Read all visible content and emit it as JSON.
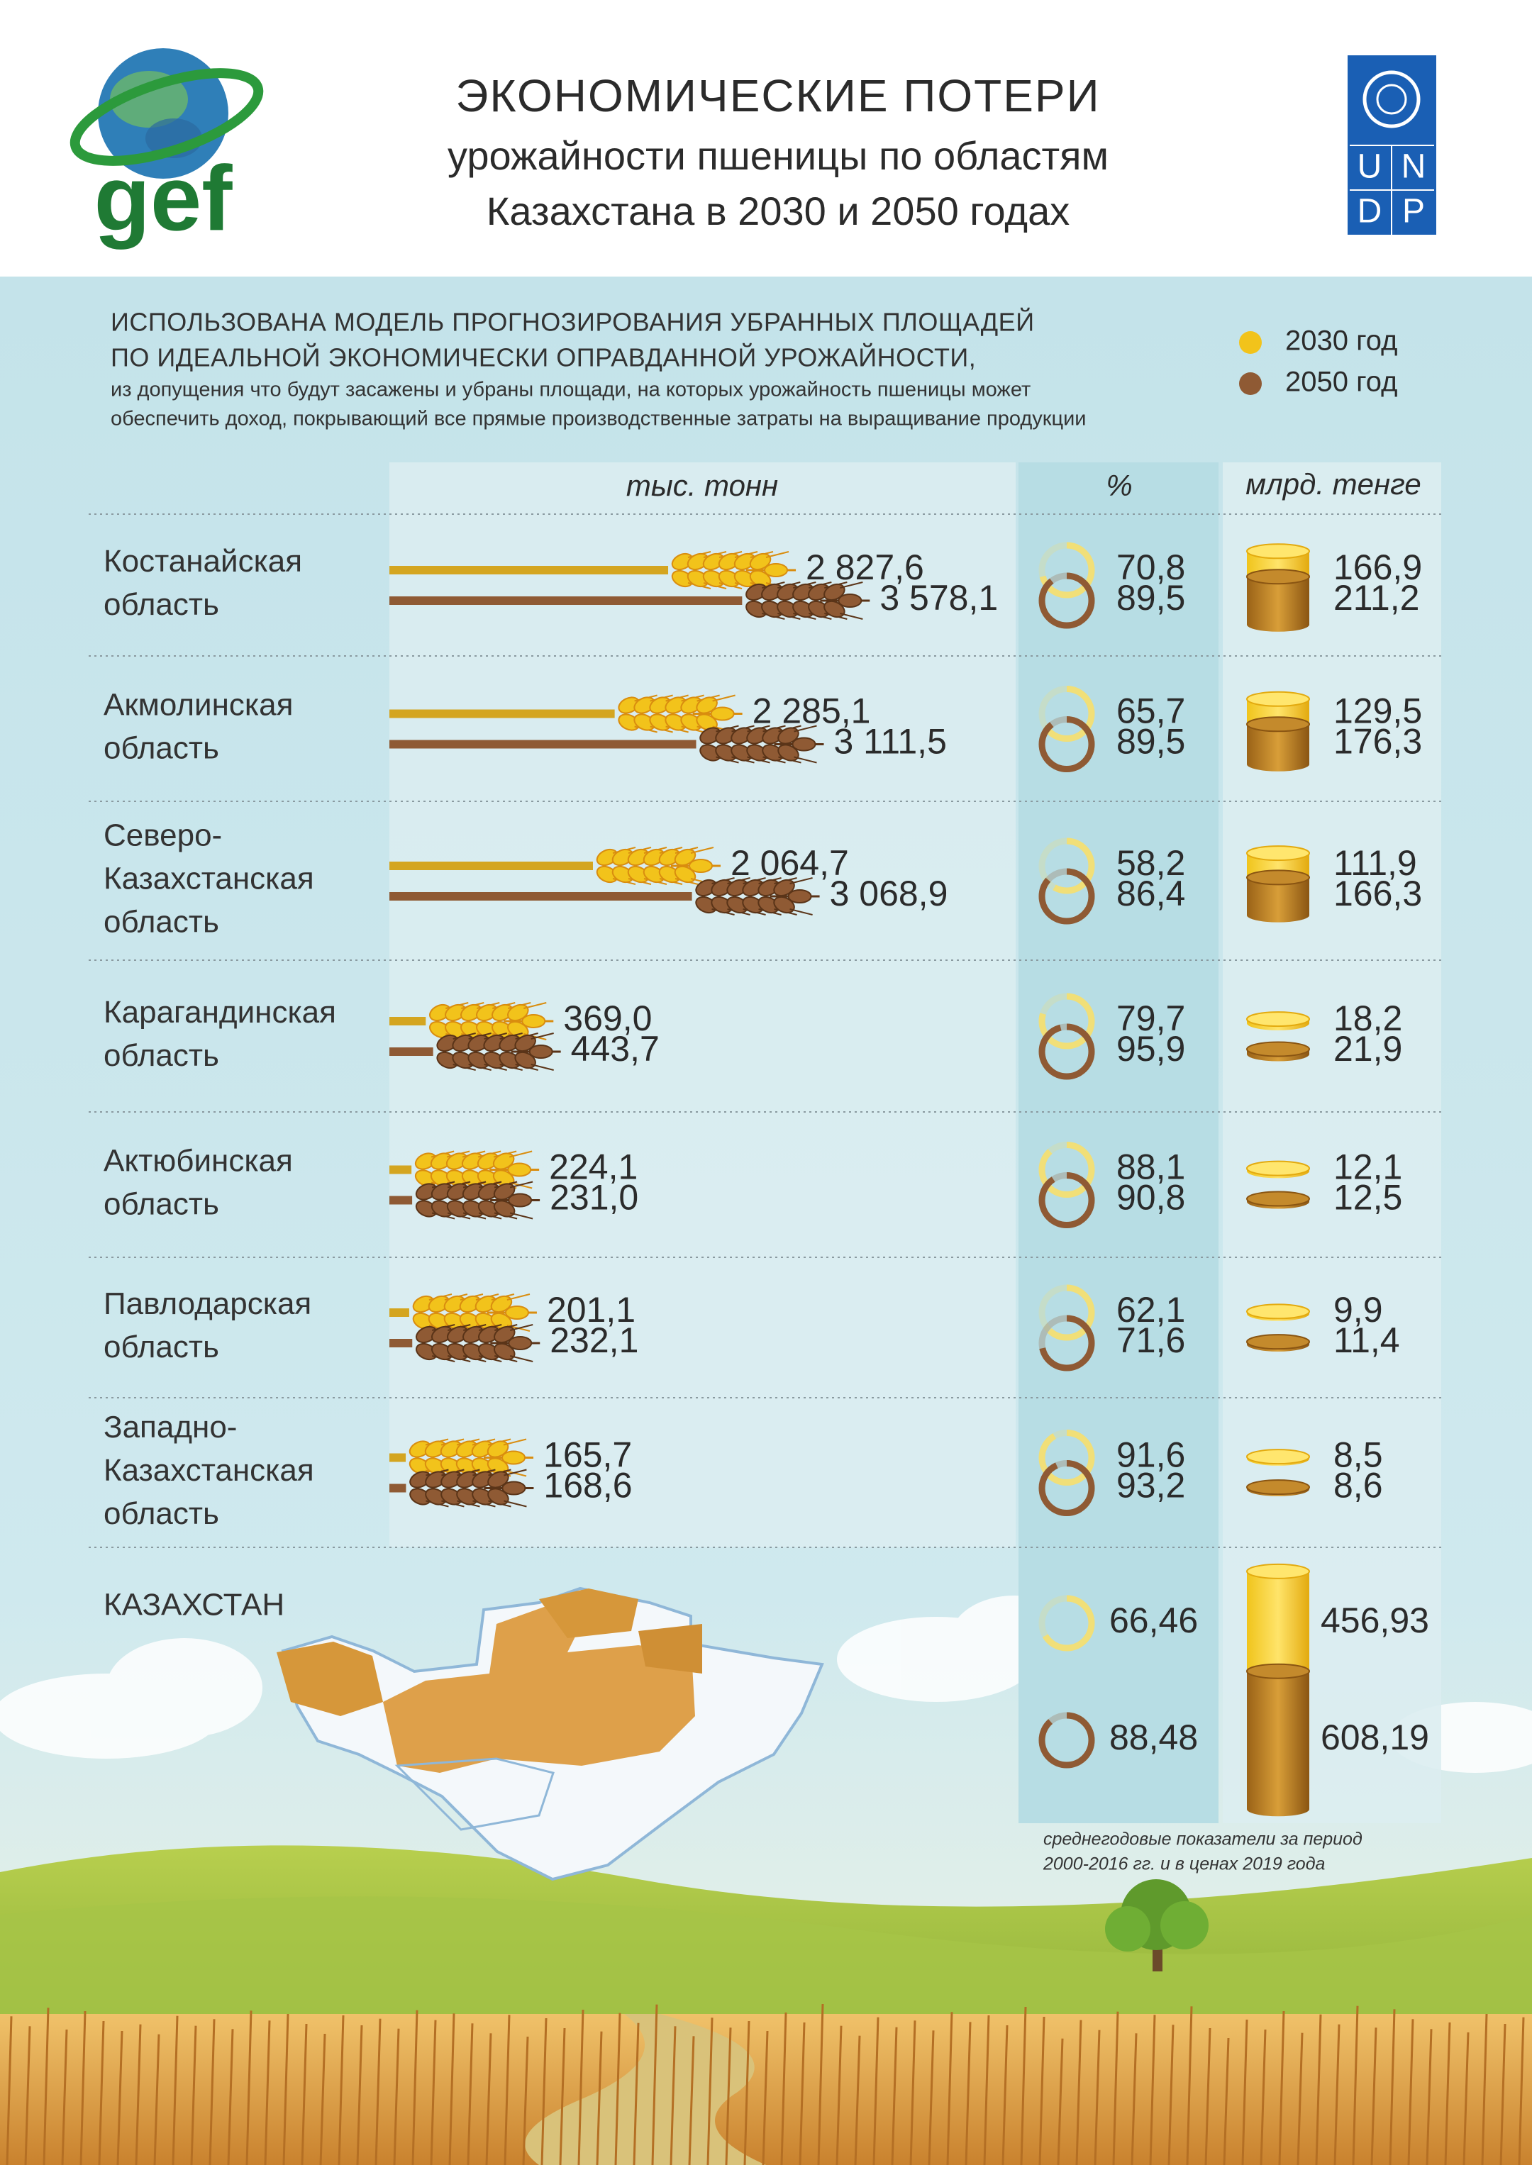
{
  "header": {
    "title": "ЭКОНОМИЧЕСКИЕ ПОТЕРИ",
    "subtitle": [
      "урожайности пшеницы по областям",
      "Казахстана в 2030 и 2050 годах"
    ]
  },
  "logos": {
    "left": "gef",
    "right": [
      "U",
      "N",
      "D",
      "P"
    ]
  },
  "intro": [
    "ИСПОЛЬЗОВАНА МОДЕЛЬ ПРОГНОЗИРОВАНИЯ УБРАННЫХ ПЛОЩАДЕЙ",
    "ПО ИДЕАЛЬНОЙ ЭКОНОМИЧЕСКИ ОПРАВДАННОЙ УРОЖАЙНОСТИ,",
    "из допущения что будут засажены и убраны площади, на которых урожайность пшеницы может",
    "обеспечить доход, покрывающий все прямые производственные затраты на выращивание продукции"
  ],
  "legend": [
    {
      "label": "2030 год",
      "color": "#f2c31b"
    },
    {
      "label": "2050 год",
      "color": "#8f5a34"
    }
  ],
  "columns": {
    "tonnes": "тыс. тонн",
    "percent": "%",
    "money": "млрд. тенге"
  },
  "regions": [
    {
      "name": [
        "Костанайская",
        "область"
      ],
      "tonnes": [
        2827.6,
        3578.1
      ],
      "tonnes_labels": [
        "2 827,6",
        "3 578,1"
      ],
      "percent": [
        70.8,
        89.5
      ],
      "percent_labels": [
        "70,8",
        "89,5"
      ],
      "money": [
        166.9,
        211.2
      ],
      "money_labels": [
        "166,9",
        "211,2"
      ]
    },
    {
      "name": [
        "Акмолинская",
        "область"
      ],
      "tonnes": [
        2285.1,
        3111.5
      ],
      "tonnes_labels": [
        "2 285,1",
        "3 111,5"
      ],
      "percent": [
        65.7,
        89.5
      ],
      "percent_labels": [
        "65,7",
        "89,5"
      ],
      "money": [
        129.5,
        176.3
      ],
      "money_labels": [
        "129,5",
        "176,3"
      ]
    },
    {
      "name": [
        "Северо-",
        "Казахстанская",
        "область"
      ],
      "tonnes": [
        2064.7,
        3068.9
      ],
      "tonnes_labels": [
        "2 064,7",
        "3 068,9"
      ],
      "percent": [
        58.2,
        86.4
      ],
      "percent_labels": [
        "58,2",
        "86,4"
      ],
      "money": [
        111.9,
        166.3
      ],
      "money_labels": [
        "111,9",
        "166,3"
      ]
    },
    {
      "name": [
        "Карагандинская",
        "область"
      ],
      "tonnes": [
        369.0,
        443.7
      ],
      "tonnes_labels": [
        "369,0",
        "443,7"
      ],
      "percent": [
        79.7,
        95.9
      ],
      "percent_labels": [
        "79,7",
        "95,9"
      ],
      "money": [
        18.2,
        21.9
      ],
      "money_labels": [
        "18,2",
        "21,9"
      ]
    },
    {
      "name": [
        "Актюбинская",
        "область"
      ],
      "tonnes": [
        224.1,
        231.0
      ],
      "tonnes_labels": [
        "224,1",
        "231,0"
      ],
      "percent": [
        88.1,
        90.8
      ],
      "percent_labels": [
        "88,1",
        "90,8"
      ],
      "money": [
        12.1,
        12.5
      ],
      "money_labels": [
        "12,1",
        "12,5"
      ]
    },
    {
      "name": [
        "Павлодарская",
        "область"
      ],
      "tonnes": [
        201.1,
        232.1
      ],
      "tonnes_labels": [
        "201,1",
        "232,1"
      ],
      "percent": [
        62.1,
        71.6
      ],
      "percent_labels": [
        "62,1",
        "71,6"
      ],
      "money": [
        9.9,
        11.4
      ],
      "money_labels": [
        "9,9",
        "11,4"
      ]
    },
    {
      "name": [
        "Западно-",
        "Казахстанская",
        "область"
      ],
      "tonnes": [
        165.7,
        168.6
      ],
      "tonnes_labels": [
        "165,7",
        "168,6"
      ],
      "percent": [
        91.6,
        93.2
      ],
      "percent_labels": [
        "91,6",
        "93,2"
      ],
      "money": [
        8.5,
        8.6
      ],
      "money_labels": [
        "8,5",
        "8,6"
      ]
    }
  ],
  "total": {
    "name": "КАЗАХСТАН",
    "percent": [
      66.46,
      88.48
    ],
    "percent_labels": [
      "66,46",
      "88,48"
    ],
    "money": [
      456.93,
      608.19
    ],
    "money_labels": [
      "456,93",
      "608,19"
    ]
  },
  "footnote": [
    "среднегодовые показатели за период",
    "2000-2016 гг. и в ценах 2019 года"
  ]
}
